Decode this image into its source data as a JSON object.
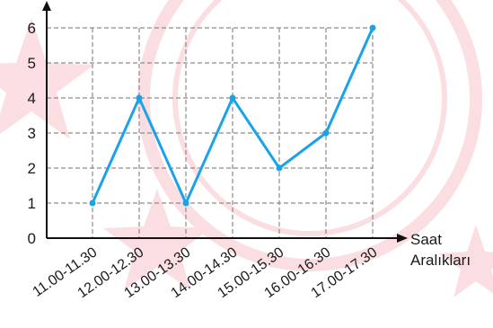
{
  "chart_data": {
    "type": "line",
    "categories": [
      "11.00-11.30",
      "12.00-12.30",
      "13.00-13.30",
      "14.00-14.30",
      "15.00-15.30",
      "16.00-16.30",
      "17.00-17.30"
    ],
    "series": [
      {
        "values": [
          1,
          4,
          1,
          4,
          2,
          3,
          6
        ]
      }
    ],
    "y_ticks": [
      "0",
      "1",
      "2",
      "3",
      "4",
      "5",
      "6"
    ],
    "ylim": [
      0,
      6
    ],
    "xlabel_line1": "Saat",
    "xlabel_line2": "Aralıkları",
    "ylabel": "",
    "title": "",
    "grid": true,
    "line_color": "#1aa3e8",
    "axis_color": "#111111",
    "grid_color": "#8a8a8a",
    "watermark_color": "#e8394a"
  }
}
